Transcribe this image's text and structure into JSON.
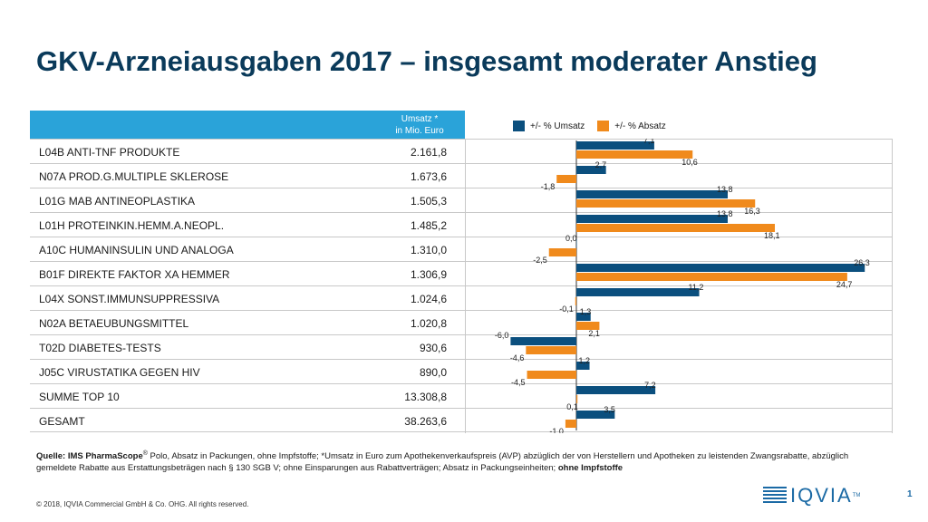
{
  "title": "GKV-Arzneiausgaben 2017 – insgesamt moderater Anstieg",
  "header": {
    "umsatz_line1": "Umsatz *",
    "umsatz_line2": "in Mio. Euro"
  },
  "legend": {
    "umsatz": "+/- % Umsatz",
    "absatz": "+/- % Absatz"
  },
  "colors": {
    "umsatz": "#0b4f7e",
    "absatz": "#f08a1c",
    "header": "#2aa3d9",
    "title": "#0a3a5a"
  },
  "rows": [
    {
      "label": "L04B  ANTI-TNF PRODUKTE",
      "value": "2.161,8"
    },
    {
      "label": "N07A  PROD.G.MULTIPLE SKLEROSE",
      "value": "1.673,6"
    },
    {
      "label": "L01G  MAB ANTINEOPLASTIKA",
      "value": "1.505,3"
    },
    {
      "label": "L01H  PROTEINKIN.HEMM.A.NEOPL.",
      "value": "1.485,2"
    },
    {
      "label": "A10C  HUMANINSULIN UND ANALOGA",
      "value": "1.310,0"
    },
    {
      "label": "B01F  DIREKTE FAKTOR XA HEMMER",
      "value": "1.306,9"
    },
    {
      "label": "L04X  SONST.IMMUNSUPPRESSIVA",
      "value": "1.024,6"
    },
    {
      "label": "N02A  BETAEUBUNGSMITTEL",
      "value": "1.020,8"
    },
    {
      "label": "T02D  DIABETES-TESTS",
      "value": "930,6"
    },
    {
      "label": "J05C  VIRUSTATIKA GEGEN HIV",
      "value": "890,0"
    },
    {
      "label": "SUMME TOP 10",
      "value": "13.308,8"
    },
    {
      "label": "GESAMT",
      "value": "38.263,6"
    }
  ],
  "chart_data": {
    "type": "bar",
    "orientation": "horizontal",
    "categories": [
      "L04B",
      "N07A",
      "L01G",
      "L01H",
      "A10C",
      "B01F",
      "L04X",
      "N02A",
      "T02D",
      "J05C",
      "SUMME TOP 10",
      "GESAMT"
    ],
    "series": [
      {
        "name": "+/- % Umsatz",
        "values": [
          7.1,
          2.7,
          13.8,
          13.8,
          0.0,
          26.3,
          11.2,
          1.3,
          -6.0,
          1.2,
          7.2,
          3.5
        ],
        "labels": [
          "7,1",
          "2,7",
          "13,8",
          "13,8",
          "0,0",
          "26,3",
          "11,2",
          "1,3",
          "-6,0",
          "1,2",
          "7,2",
          "3,5"
        ]
      },
      {
        "name": "+/- % Absatz",
        "values": [
          10.6,
          -1.8,
          16.3,
          18.1,
          -2.5,
          24.7,
          -0.1,
          2.1,
          -4.6,
          -4.5,
          0.1,
          -1.0
        ],
        "labels": [
          "10,6",
          "-1,8",
          "16,3",
          "18,1",
          "-2,5",
          "24,7",
          "-0,1",
          "2,1",
          "-4,6",
          "-4,5",
          "0,1",
          "-1,0"
        ]
      }
    ],
    "legend_position": "top",
    "xlim": [
      -8,
      27
    ]
  },
  "source": {
    "lead": "Quelle: IMS PharmaScope",
    "reg": "®",
    "text": " Polo, Absatz in Packungen, ohne Impfstoffe; *Umsatz in Euro zum Apothekenverkaufspreis (AVP) abzüglich der von Herstellern und Apotheken zu leistenden Zwangsrabatte, abzüglich gemeldete Rabatte aus Erstattungsbeträgen nach  § 130 SGB V; ohne Einsparungen aus Rabattverträgen; Absatz in Packungseinheiten; ",
    "bold_end": "ohne Impfstoffe"
  },
  "copyright": "© 2018, IQVIA Commercial GmbH & Co. OHG. All rights reserved.",
  "logo": {
    "text": "IQVIA",
    "tm": "TM"
  },
  "page_number": "1"
}
